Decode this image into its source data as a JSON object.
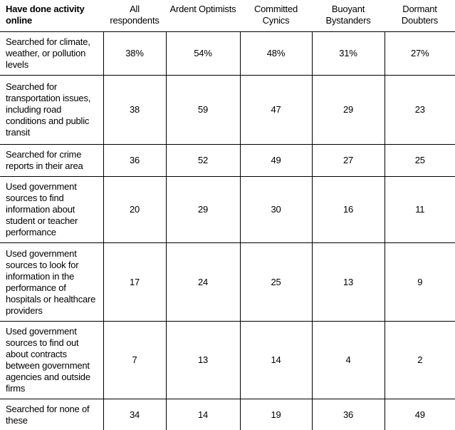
{
  "table": {
    "header": {
      "activity_label": "Have done activity online",
      "columns": [
        "All respondents",
        "Ardent Optimists",
        "Committed Cynics",
        "Buoyant Bystanders",
        "Dormant Doubters"
      ]
    },
    "rows": [
      {
        "label": "Searched for climate, weather, or pollution levels",
        "values": [
          "38%",
          "54%",
          "48%",
          "31%",
          "27%"
        ]
      },
      {
        "label": "Searched for transportation issues, including road conditions and public transit",
        "values": [
          "38",
          "59",
          "47",
          "29",
          "23"
        ]
      },
      {
        "label": "Searched for crime reports in their area",
        "values": [
          "36",
          "52",
          "49",
          "27",
          "25"
        ]
      },
      {
        "label": "Used government sources to find information about student or teacher performance",
        "values": [
          "20",
          "29",
          "30",
          "16",
          "11"
        ]
      },
      {
        "label": "Used government sources to look for information in the performance of hospitals or healthcare providers",
        "values": [
          "17",
          "24",
          "25",
          "13",
          "9"
        ]
      },
      {
        "label": "Used government sources to find out about contracts between government agencies and outside firms",
        "values": [
          "7",
          "13",
          "14",
          "4",
          "2"
        ]
      },
      {
        "label": "Searched for none of these",
        "values": [
          "34",
          "14",
          "19",
          "36",
          "49"
        ]
      }
    ]
  },
  "chart_data": {
    "type": "table",
    "title": "Have done activity online",
    "columns": [
      "Have done activity online",
      "All respondents",
      "Ardent Optimists",
      "Committed Cynics",
      "Buoyant Bystanders",
      "Dormant Doubters"
    ],
    "rows": [
      [
        "Searched for climate, weather, or pollution levels",
        "38%",
        "54%",
        "48%",
        "31%",
        "27%"
      ],
      [
        "Searched for transportation issues, including road conditions and public transit",
        "38",
        "59",
        "47",
        "29",
        "23"
      ],
      [
        "Searched for crime reports in their area",
        "36",
        "52",
        "49",
        "27",
        "25"
      ],
      [
        "Used government sources to find information about student or teacher performance",
        "20",
        "29",
        "30",
        "16",
        "11"
      ],
      [
        "Used government sources to look for information in the performance of hospitals or healthcare providers",
        "17",
        "24",
        "25",
        "13",
        "9"
      ],
      [
        "Used government sources to find out about contracts between government agencies and outside firms",
        "7",
        "13",
        "14",
        "4",
        "2"
      ],
      [
        "Searched for none of these",
        "34",
        "14",
        "19",
        "36",
        "49"
      ]
    ],
    "units": "percent of group",
    "layout": {
      "grid": "horizontal and vertical rules in body only",
      "header_rule": true,
      "bottom_rule_weight": "heavy"
    }
  },
  "colors": {
    "background": "#ffffff",
    "text": "#000000",
    "rule": "#000000"
  }
}
